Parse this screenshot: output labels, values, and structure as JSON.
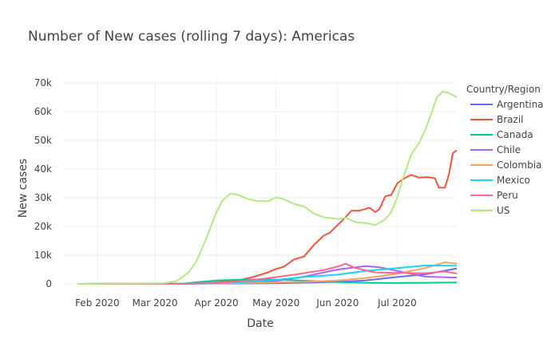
{
  "chart_data": {
    "type": "line",
    "title": "Number of New cases (rolling 7 days): Americas",
    "xlabel": "Date",
    "ylabel": "New cases",
    "x_ticks": [
      "Feb 2020",
      "Mar 2020",
      "Apr 2020",
      "May 2020",
      "Jun 2020",
      "Jul 2020"
    ],
    "y_ticks": [
      "0",
      "10k",
      "20k",
      "30k",
      "40k",
      "50k",
      "60k",
      "70k"
    ],
    "ylim": [
      0,
      70000
    ],
    "xlim": [
      "2020-01-22",
      "2020-07-31"
    ],
    "grid": true,
    "legend_title": "Country/Region",
    "legend_position": "right",
    "series": [
      {
        "name": "Argentina",
        "color": "#636efa",
        "points": [
          [
            "2020-01-22",
            0
          ],
          [
            "2020-03-15",
            0
          ],
          [
            "2020-04-01",
            100
          ],
          [
            "2020-05-01",
            200
          ],
          [
            "2020-05-20",
            500
          ],
          [
            "2020-06-01",
            700
          ],
          [
            "2020-06-15",
            1200
          ],
          [
            "2020-07-01",
            2400
          ],
          [
            "2020-07-15",
            3300
          ],
          [
            "2020-07-31",
            5400
          ]
        ]
      },
      {
        "name": "Brazil",
        "color": "#ef553b",
        "points": [
          [
            "2020-01-22",
            0
          ],
          [
            "2020-03-10",
            0
          ],
          [
            "2020-03-25",
            200
          ],
          [
            "2020-04-05",
            800
          ],
          [
            "2020-04-12",
            1200
          ],
          [
            "2020-04-20",
            2500
          ],
          [
            "2020-04-27",
            4000
          ],
          [
            "2020-05-01",
            5200
          ],
          [
            "2020-05-05",
            6000
          ],
          [
            "2020-05-10",
            8500
          ],
          [
            "2020-05-15",
            9500
          ],
          [
            "2020-05-20",
            13500
          ],
          [
            "2020-05-25",
            16800
          ],
          [
            "2020-05-28",
            17800
          ],
          [
            "2020-06-01",
            20500
          ],
          [
            "2020-06-04",
            22500
          ],
          [
            "2020-06-08",
            25500
          ],
          [
            "2020-06-12",
            25500
          ],
          [
            "2020-06-17",
            26500
          ],
          [
            "2020-06-20",
            25000
          ],
          [
            "2020-06-22",
            26000
          ],
          [
            "2020-06-25",
            30500
          ],
          [
            "2020-06-28",
            31000
          ],
          [
            "2020-07-01",
            35000
          ],
          [
            "2020-07-04",
            36500
          ],
          [
            "2020-07-08",
            38000
          ],
          [
            "2020-07-12",
            37000
          ],
          [
            "2020-07-16",
            37200
          ],
          [
            "2020-07-20",
            36800
          ],
          [
            "2020-07-22",
            33500
          ],
          [
            "2020-07-25",
            33500
          ],
          [
            "2020-07-27",
            38000
          ],
          [
            "2020-07-29",
            45500
          ],
          [
            "2020-07-31",
            46500
          ]
        ]
      },
      {
        "name": "Canada",
        "color": "#00cc96",
        "points": [
          [
            "2020-01-22",
            0
          ],
          [
            "2020-03-15",
            100
          ],
          [
            "2020-04-01",
            1200
          ],
          [
            "2020-04-15",
            1500
          ],
          [
            "2020-05-01",
            1500
          ],
          [
            "2020-05-15",
            1100
          ],
          [
            "2020-06-01",
            600
          ],
          [
            "2020-06-15",
            400
          ],
          [
            "2020-07-01",
            300
          ],
          [
            "2020-07-15",
            400
          ],
          [
            "2020-07-31",
            500
          ]
        ]
      },
      {
        "name": "Chile",
        "color": "#ab63fa",
        "points": [
          [
            "2020-01-22",
            0
          ],
          [
            "2020-03-20",
            100
          ],
          [
            "2020-04-15",
            400
          ],
          [
            "2020-05-01",
            1000
          ],
          [
            "2020-05-15",
            2500
          ],
          [
            "2020-06-01",
            5000
          ],
          [
            "2020-06-15",
            6200
          ],
          [
            "2020-06-22",
            5800
          ],
          [
            "2020-07-01",
            4500
          ],
          [
            "2020-07-15",
            2500
          ],
          [
            "2020-07-31",
            2200
          ]
        ]
      },
      {
        "name": "Colombia",
        "color": "#ffa15a",
        "points": [
          [
            "2020-01-22",
            0
          ],
          [
            "2020-03-20",
            100
          ],
          [
            "2020-04-15",
            300
          ],
          [
            "2020-05-01",
            500
          ],
          [
            "2020-05-15",
            700
          ],
          [
            "2020-06-01",
            1200
          ],
          [
            "2020-06-15",
            2000
          ],
          [
            "2020-07-01",
            3500
          ],
          [
            "2020-07-15",
            5500
          ],
          [
            "2020-07-25",
            7500
          ],
          [
            "2020-07-31",
            7000
          ]
        ]
      },
      {
        "name": "Mexico",
        "color": "#19d3f3",
        "points": [
          [
            "2020-01-22",
            0
          ],
          [
            "2020-03-25",
            100
          ],
          [
            "2020-04-15",
            600
          ],
          [
            "2020-05-01",
            1400
          ],
          [
            "2020-05-15",
            2400
          ],
          [
            "2020-06-01",
            3200
          ],
          [
            "2020-06-15",
            4500
          ],
          [
            "2020-07-01",
            5500
          ],
          [
            "2020-07-15",
            6400
          ],
          [
            "2020-07-31",
            6300
          ]
        ]
      },
      {
        "name": "Peru",
        "color": "#ff6692",
        "points": [
          [
            "2020-01-22",
            0
          ],
          [
            "2020-03-20",
            50
          ],
          [
            "2020-04-10",
            700
          ],
          [
            "2020-04-25",
            1800
          ],
          [
            "2020-05-10",
            3200
          ],
          [
            "2020-05-25",
            4800
          ],
          [
            "2020-06-01",
            6000
          ],
          [
            "2020-06-05",
            7000
          ],
          [
            "2020-06-10",
            5500
          ],
          [
            "2020-06-20",
            4000
          ],
          [
            "2020-07-01",
            3800
          ],
          [
            "2020-07-15",
            3700
          ],
          [
            "2020-07-25",
            4300
          ],
          [
            "2020-07-31",
            3600
          ]
        ]
      },
      {
        "name": "US",
        "color": "#b6e880",
        "points": [
          [
            "2020-01-22",
            0
          ],
          [
            "2020-03-05",
            200
          ],
          [
            "2020-03-12",
            1000
          ],
          [
            "2020-03-18",
            4000
          ],
          [
            "2020-03-22",
            8000
          ],
          [
            "2020-03-27",
            16000
          ],
          [
            "2020-04-01",
            25000
          ],
          [
            "2020-04-04",
            29000
          ],
          [
            "2020-04-08",
            31500
          ],
          [
            "2020-04-12",
            31000
          ],
          [
            "2020-04-17",
            29500
          ],
          [
            "2020-04-22",
            28800
          ],
          [
            "2020-04-27",
            28800
          ],
          [
            "2020-05-01",
            30200
          ],
          [
            "2020-05-05",
            29500
          ],
          [
            "2020-05-10",
            27800
          ],
          [
            "2020-05-15",
            27000
          ],
          [
            "2020-05-20",
            24500
          ],
          [
            "2020-05-25",
            23200
          ],
          [
            "2020-05-30",
            22800
          ],
          [
            "2020-06-01",
            22600
          ],
          [
            "2020-06-05",
            23000
          ],
          [
            "2020-06-10",
            21500
          ],
          [
            "2020-06-15",
            21200
          ],
          [
            "2020-06-20",
            20500
          ],
          [
            "2020-06-25",
            22500
          ],
          [
            "2020-06-28",
            25000
          ],
          [
            "2020-07-01",
            30000
          ],
          [
            "2020-07-04",
            37000
          ],
          [
            "2020-07-08",
            45000
          ],
          [
            "2020-07-12",
            49000
          ],
          [
            "2020-07-15",
            53500
          ],
          [
            "2020-07-18",
            59000
          ],
          [
            "2020-07-21",
            65000
          ],
          [
            "2020-07-24",
            67000
          ],
          [
            "2020-07-27",
            66500
          ],
          [
            "2020-07-31",
            65000
          ]
        ]
      }
    ]
  }
}
